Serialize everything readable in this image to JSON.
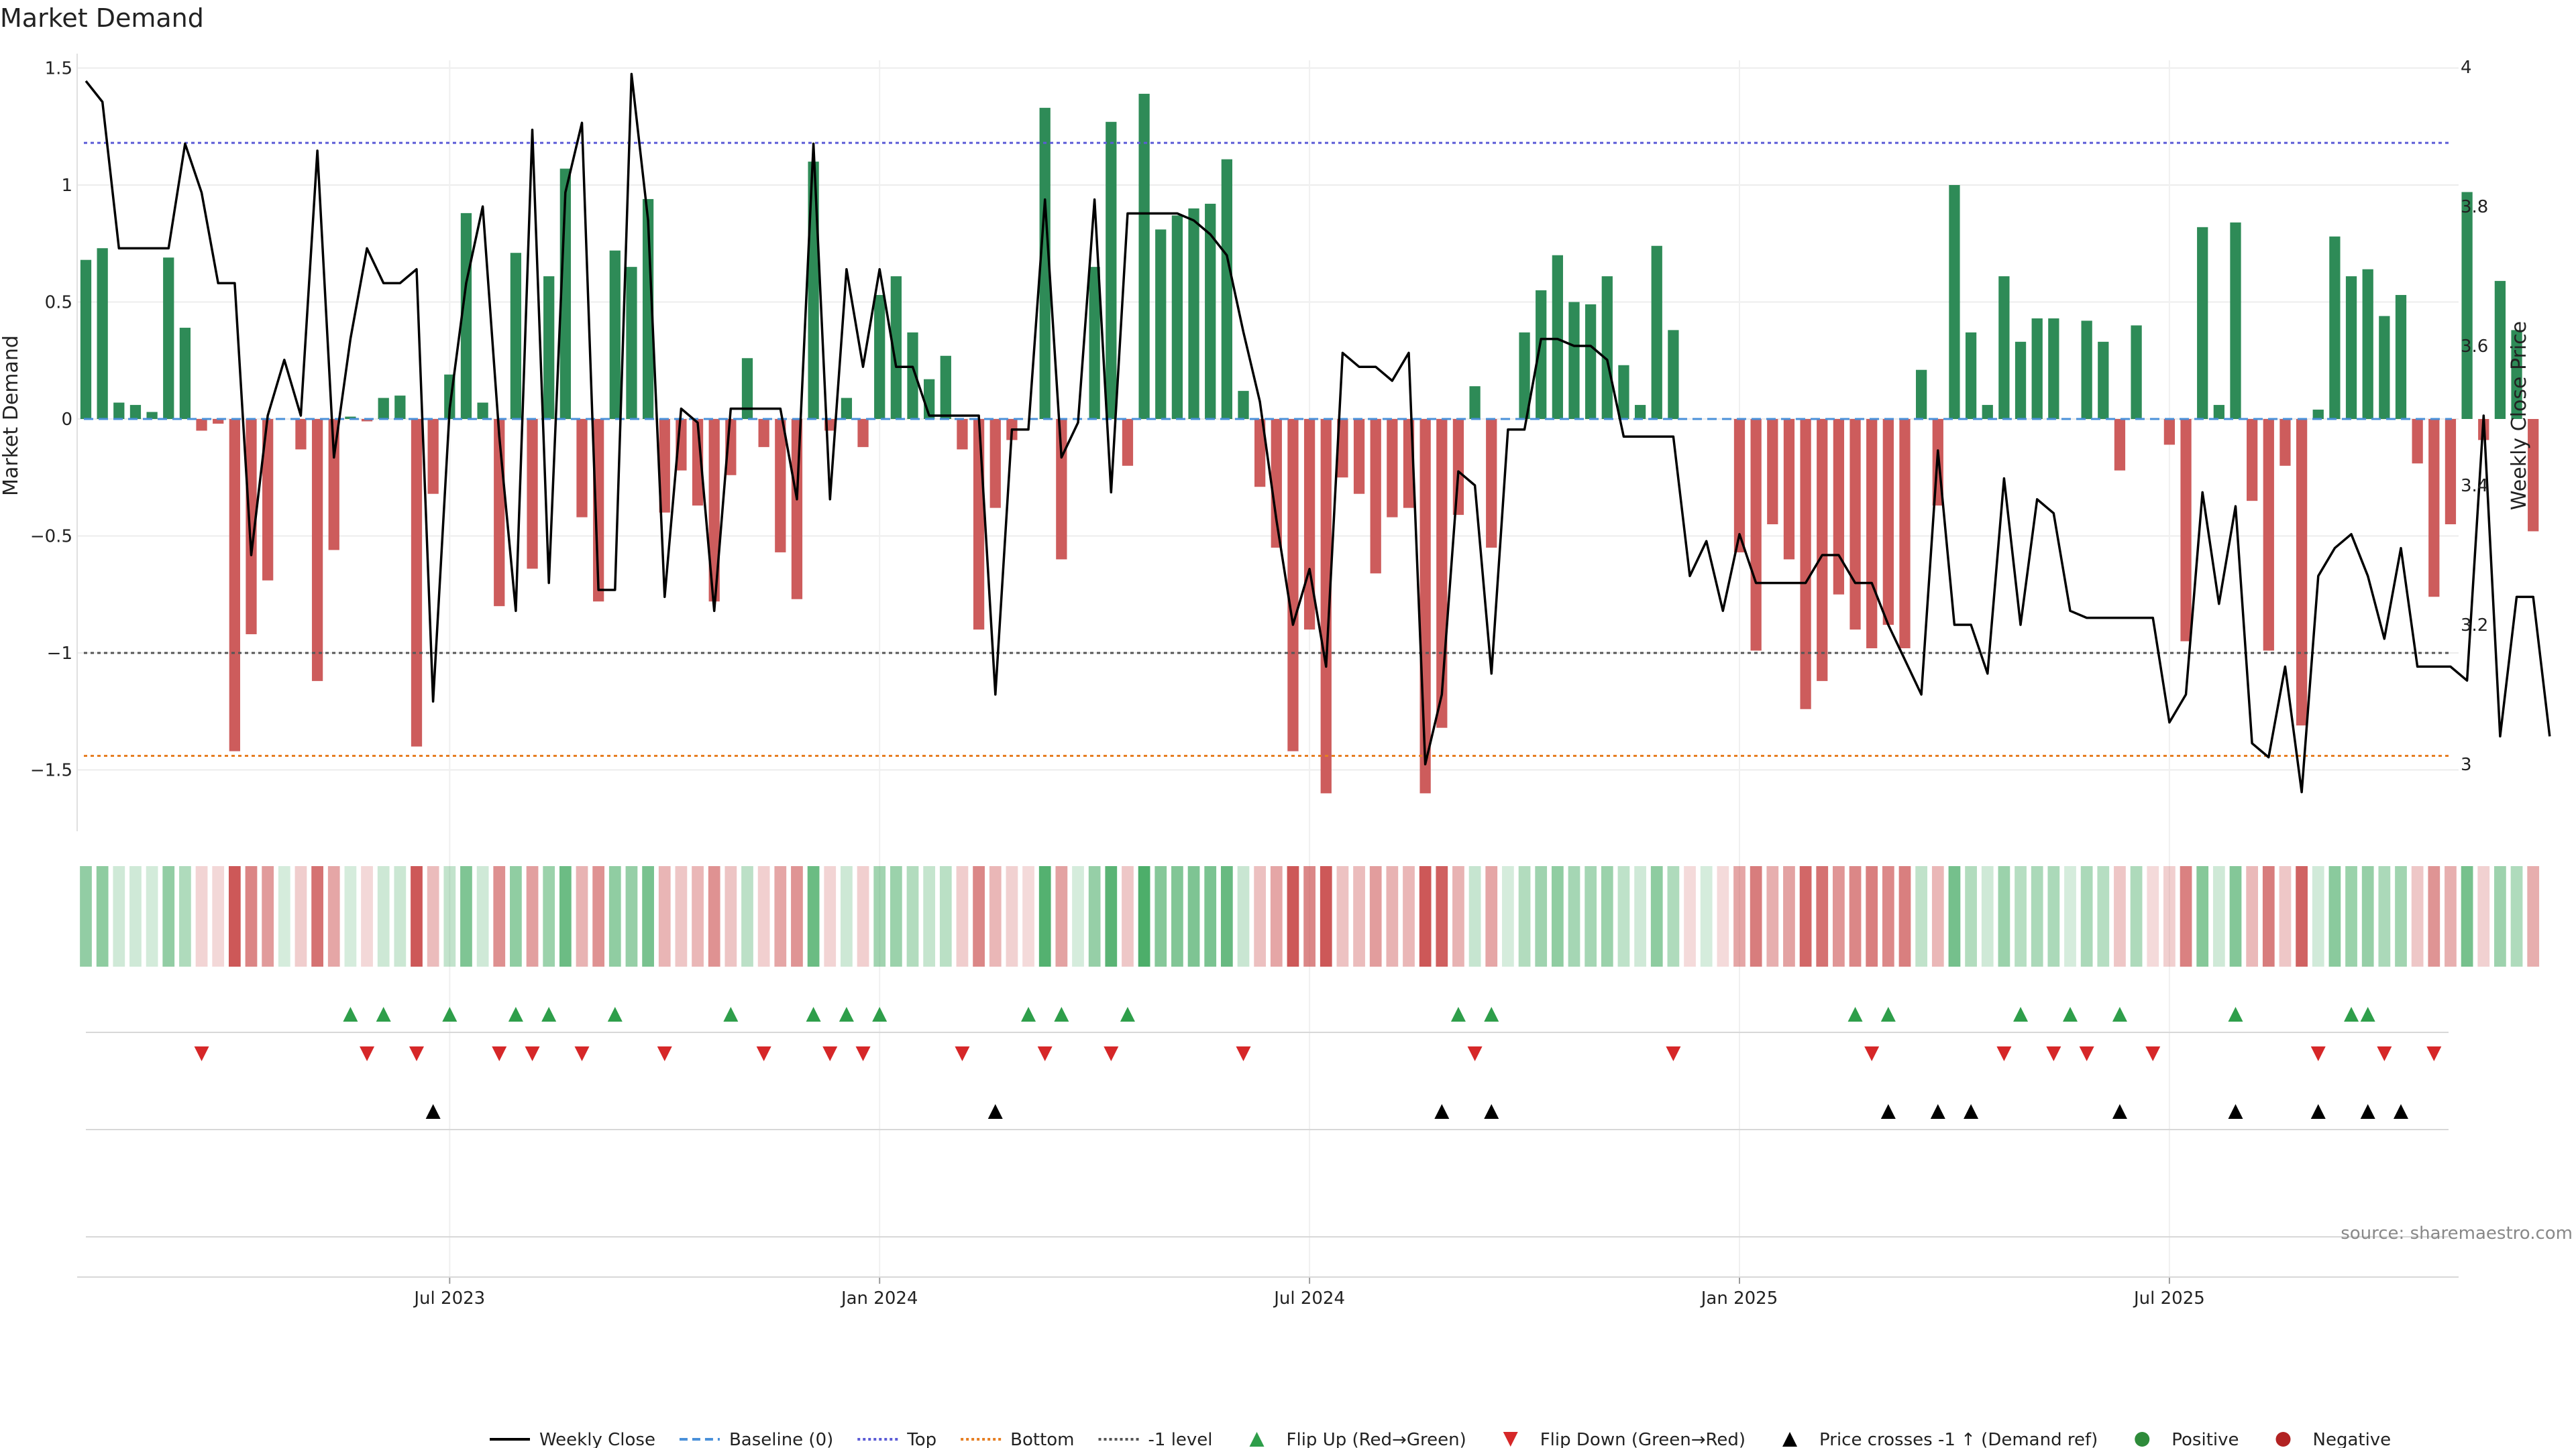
{
  "chart_data": {
    "type": "bar",
    "title": "Market Demand",
    "ylabel": "Market Demand",
    "y2label": "Weekly Close Price",
    "ylim": [
      -1.77,
      1.5
    ],
    "y2lim": [
      2.92,
      4.0
    ],
    "y_ticks": [
      "1.5",
      "1",
      "0.5",
      "0",
      "−0.5",
      "−1",
      "−1.5"
    ],
    "y_tick_values": [
      1.5,
      1.0,
      0.5,
      0.0,
      -0.5,
      -1.0,
      -1.5
    ],
    "y2_ticks": [
      "4",
      "3.8",
      "3.6",
      "3.4",
      "3.2",
      "3"
    ],
    "y2_tick_values": [
      4.0,
      3.8,
      3.6,
      3.4,
      3.2,
      3.0
    ],
    "x_ticks": [
      "Jul 2023",
      "Jan 2024",
      "Jul 2024",
      "Jan 2025",
      "Jul 2025"
    ],
    "x_tick_weeks": [
      22,
      48,
      74,
      100,
      126
    ],
    "reference_lines": [
      {
        "name": "Top",
        "value": 1.18,
        "color": "#5b5bd6",
        "style": "dotted"
      },
      {
        "name": "Bottom",
        "value": -1.44,
        "color": "#e67e22",
        "style": "dotted"
      },
      {
        "name": "-1 level",
        "value": -1.0,
        "color": "#555555",
        "style": "dotted"
      },
      {
        "name": "Baseline (0)",
        "value": 0.0,
        "color": "#4a90d9",
        "style": "dashed"
      }
    ],
    "demand": [
      0.68,
      0.73,
      0.07,
      0.06,
      0.03,
      0.69,
      0.39,
      -0.05,
      -0.02,
      -1.42,
      -0.92,
      -0.69,
      0.0,
      -0.13,
      -1.12,
      -0.56,
      0.01,
      -0.01,
      0.09,
      0.1,
      -1.4,
      -0.32,
      0.19,
      0.88,
      0.07,
      -0.8,
      0.71,
      -0.64,
      0.61,
      1.07,
      -0.42,
      -0.78,
      0.72,
      0.65,
      0.94,
      -0.4,
      -0.22,
      -0.37,
      -0.78,
      -0.24,
      0.26,
      -0.12,
      -0.57,
      -0.77,
      1.1,
      -0.05,
      0.09,
      -0.12,
      0.53,
      0.61,
      0.37,
      0.17,
      0.27,
      -0.13,
      -0.9,
      -0.38,
      -0.09,
      0.0,
      1.33,
      -0.6,
      0.0,
      0.65,
      1.27,
      -0.2,
      1.39,
      0.81,
      0.87,
      0.9,
      0.92,
      1.11,
      0.12,
      -0.29,
      -0.55,
      -1.42,
      -0.9,
      -1.6,
      -0.25,
      -0.32,
      -0.66,
      -0.42,
      -0.38,
      -1.6,
      -1.32,
      -0.41,
      0.14,
      -0.55,
      0.0,
      0.37,
      0.55,
      0.7,
      0.5,
      0.49,
      0.61,
      0.23,
      0.06,
      0.74,
      0.38,
      0.0,
      0.0,
      0.0,
      -0.57,
      -0.99,
      -0.45,
      -0.6,
      -1.24,
      -1.12,
      -0.75,
      -0.9,
      -0.98,
      -0.88,
      -0.98,
      0.21,
      -0.37,
      1.0,
      0.37,
      0.06,
      0.61,
      0.33,
      0.43,
      0.43,
      0.0,
      0.42,
      0.33,
      -0.22,
      0.4,
      0.0,
      -0.11,
      -0.95,
      0.82,
      0.06,
      0.84,
      -0.35,
      -0.99,
      -0.2,
      -1.31,
      0.04,
      0.78,
      0.61,
      0.64,
      0.44,
      0.53,
      -0.19,
      -0.76,
      -0.45,
      0.97,
      -0.09,
      0.59,
      0.38,
      -0.48
    ],
    "price": [
      3.98,
      3.95,
      3.74,
      3.74,
      3.74,
      3.74,
      3.89,
      3.82,
      3.69,
      3.69,
      3.3,
      3.5,
      3.58,
      3.5,
      3.88,
      3.44,
      3.61,
      3.74,
      3.69,
      3.69,
      3.71,
      3.09,
      3.51,
      3.69,
      3.8,
      3.47,
      3.22,
      3.91,
      3.26,
      3.82,
      3.92,
      3.25,
      3.25,
      3.99,
      3.78,
      3.24,
      3.51,
      3.49,
      3.22,
      3.51,
      3.51,
      3.51,
      3.51,
      3.38,
      3.89,
      3.38,
      3.71,
      3.57,
      3.71,
      3.57,
      3.57,
      3.5,
      3.5,
      3.5,
      3.5,
      3.1,
      3.48,
      3.48,
      3.81,
      3.44,
      3.49,
      3.81,
      3.39,
      3.79,
      3.79,
      3.79,
      3.79,
      3.78,
      3.76,
      3.73,
      3.62,
      3.52,
      3.35,
      3.2,
      3.28,
      3.14,
      3.59,
      3.57,
      3.57,
      3.55,
      3.59,
      3.0,
      3.1,
      3.42,
      3.4,
      3.13,
      3.48,
      3.48,
      3.61,
      3.61,
      3.6,
      3.6,
      3.58,
      3.47,
      3.47,
      3.47,
      3.47,
      3.27,
      3.32,
      3.22,
      3.33,
      3.26,
      3.26,
      3.26,
      3.26,
      3.3,
      3.3,
      3.26,
      3.26,
      3.2,
      3.15,
      3.1,
      3.45,
      3.2,
      3.2,
      3.13,
      3.41,
      3.2,
      3.38,
      3.36,
      3.22,
      3.21,
      3.21,
      3.21,
      3.21,
      3.21,
      3.06,
      3.1,
      3.39,
      3.23,
      3.37,
      3.03,
      3.01,
      3.14,
      2.96,
      3.27,
      3.31,
      3.33,
      3.27,
      3.18,
      3.31,
      3.14,
      3.14,
      3.14,
      3.12,
      3.5,
      3.04,
      3.24,
      3.24,
      3.04
    ],
    "flip_up_weeks": [
      16,
      18,
      22,
      26,
      28,
      32,
      39,
      44,
      46,
      48,
      57,
      59,
      63,
      83,
      85,
      107,
      109,
      117,
      120,
      123,
      130,
      137,
      138
    ],
    "flip_down_weeks": [
      7,
      17,
      20,
      25,
      27,
      30,
      35,
      41,
      45,
      47,
      53,
      58,
      62,
      70,
      84,
      96,
      108,
      116,
      119,
      121,
      125,
      135,
      139,
      142
    ],
    "price_cross_weeks": [
      21,
      55,
      82,
      85,
      109,
      112,
      114,
      123,
      130,
      135,
      138,
      140
    ],
    "source": "source: sharemaestro.com",
    "legend": [
      {
        "label": "Weekly Close",
        "kind": "line-solid",
        "color": "#000000"
      },
      {
        "label": "Baseline (0)",
        "kind": "line-dashed",
        "color": "#4a90d9"
      },
      {
        "label": "Top",
        "kind": "line-dotted",
        "color": "#5b5bd6"
      },
      {
        "label": "Bottom",
        "kind": "line-dotted",
        "color": "#e67e22"
      },
      {
        "label": "-1 level",
        "kind": "line-dotted",
        "color": "#555555"
      },
      {
        "label": "Flip Up (Red→Green)",
        "kind": "triangle-up",
        "color": "#2e9e4a"
      },
      {
        "label": "Flip Down (Green→Red)",
        "kind": "triangle-down",
        "color": "#d62728"
      },
      {
        "label": "Price crosses -1 ↑ (Demand ref)",
        "kind": "triangle-up",
        "color": "#000000"
      },
      {
        "label": "Positive",
        "kind": "circle",
        "color": "#2e8b3a"
      },
      {
        "label": "Negative",
        "kind": "circle",
        "color": "#b22222"
      }
    ],
    "colors": {
      "positive": "#2e8b57",
      "negative": "#cd5c5c",
      "price": "#000000"
    }
  }
}
